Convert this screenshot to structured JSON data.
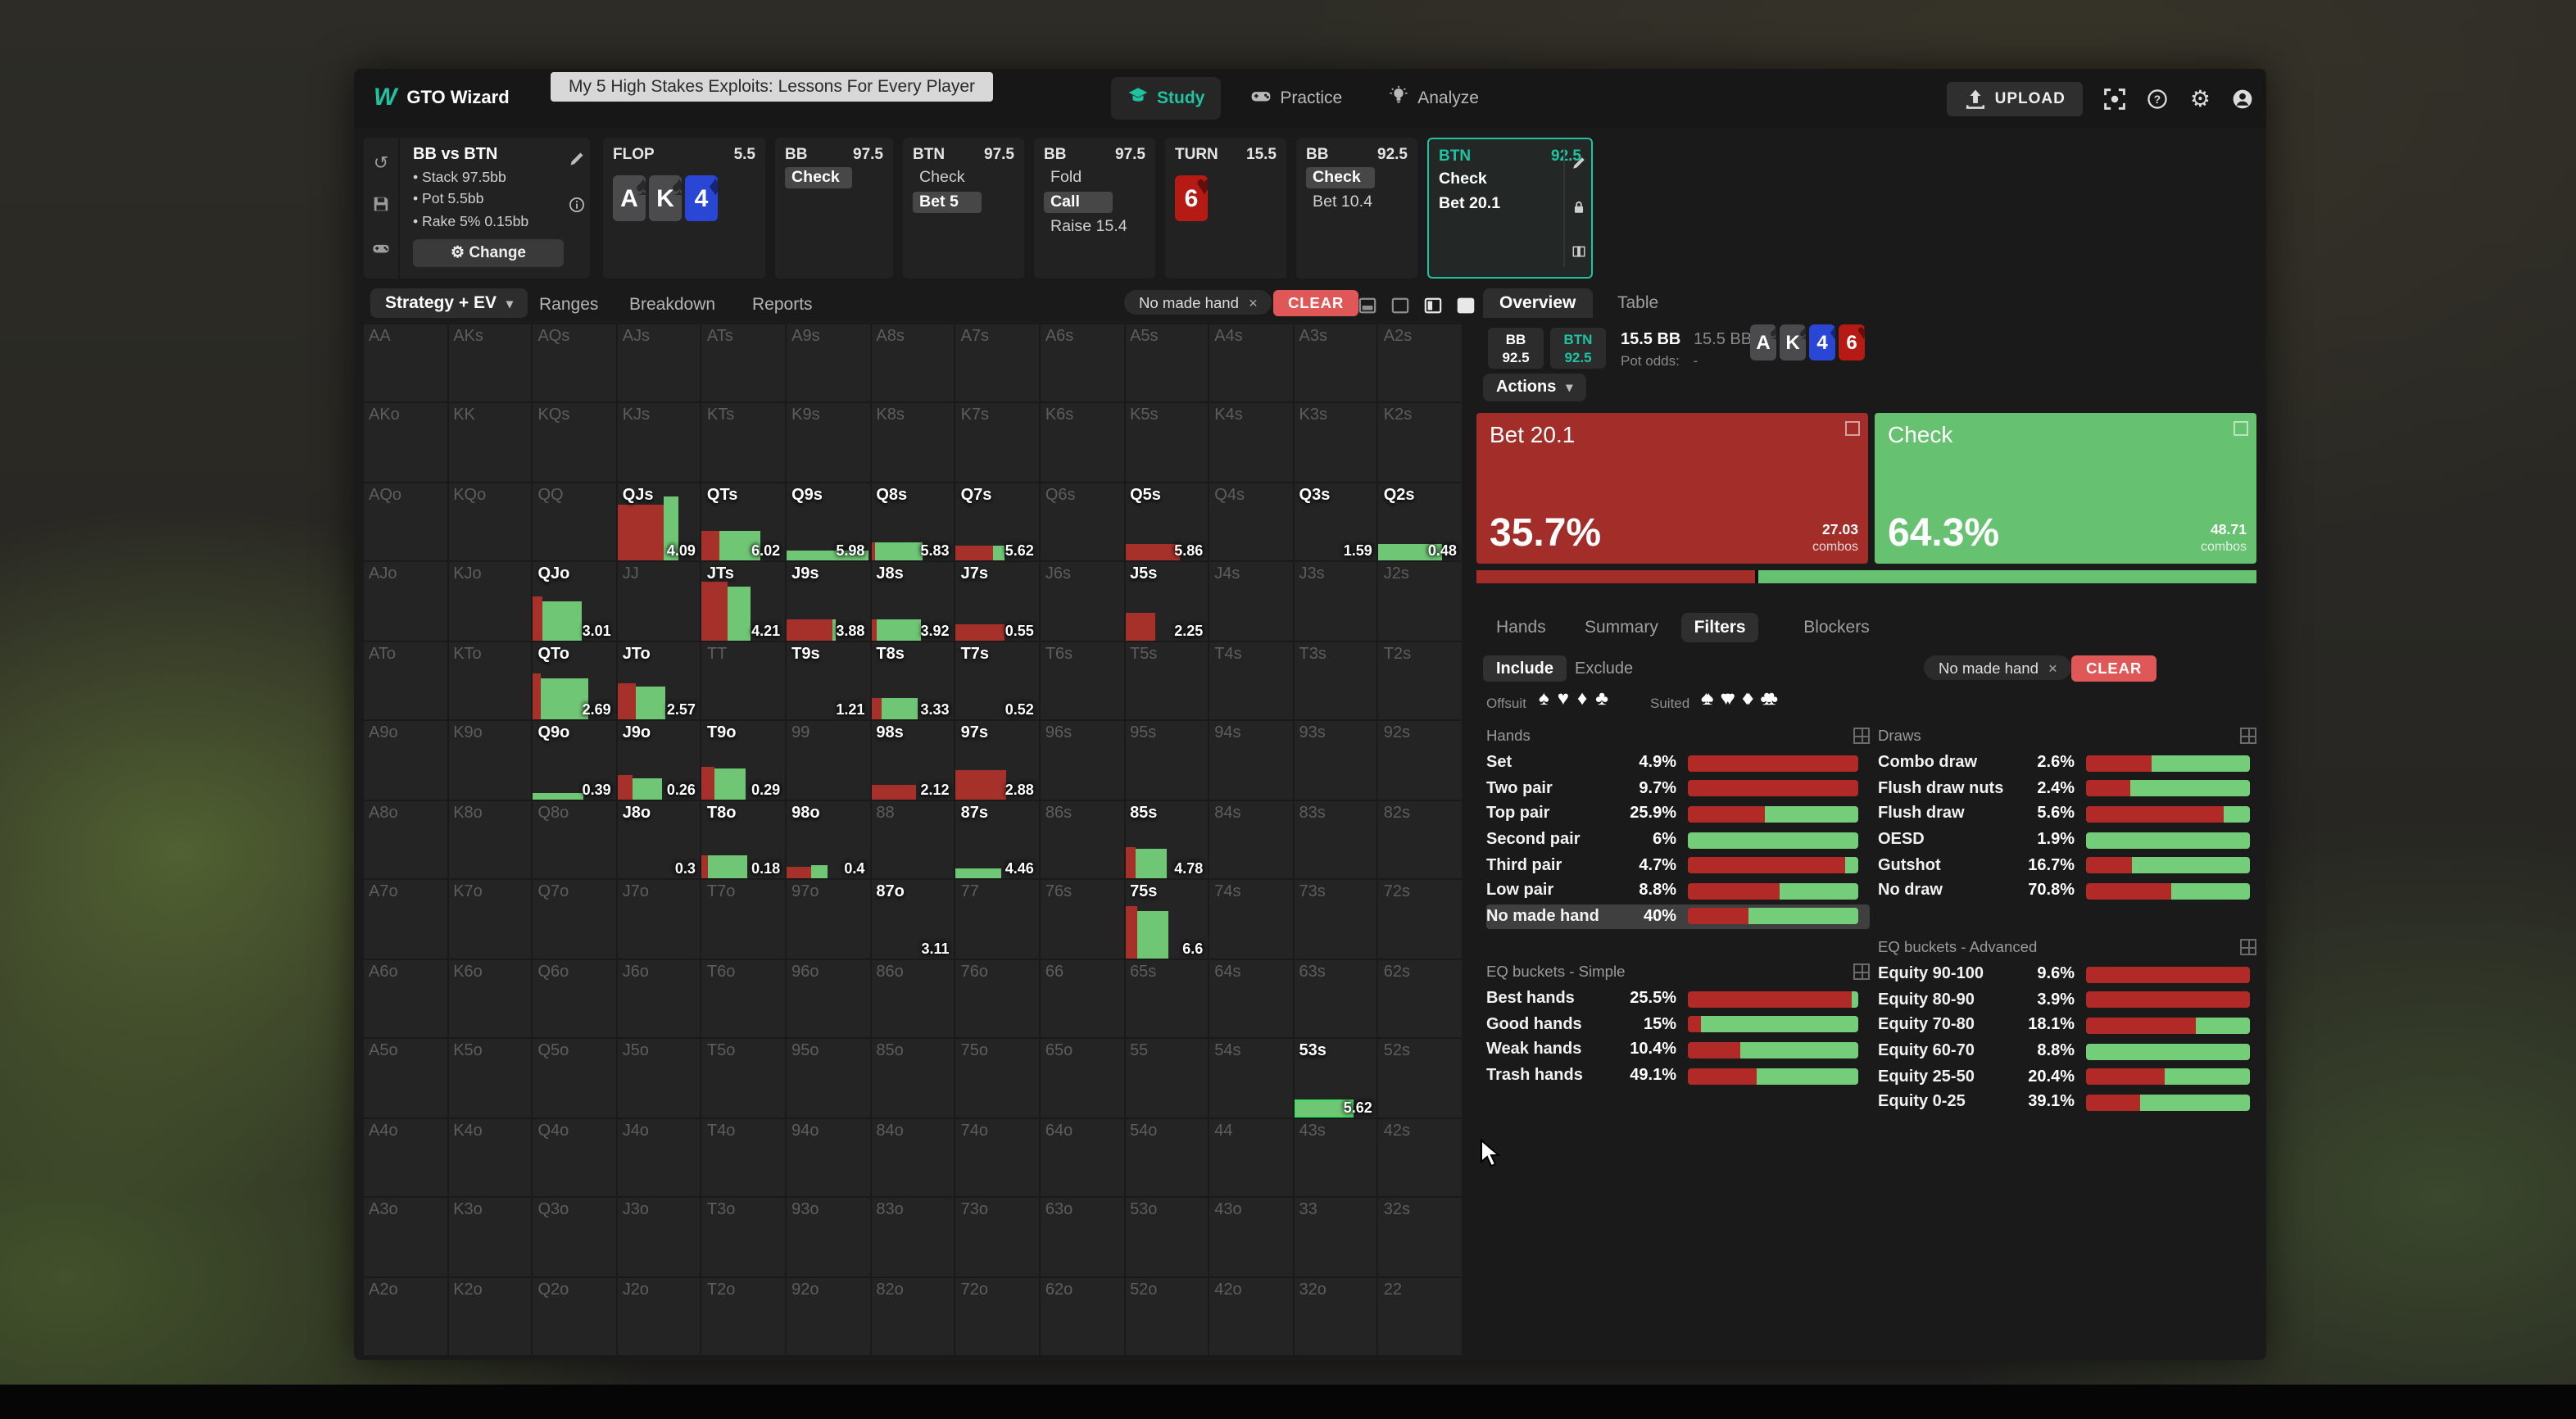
{
  "colors": {
    "accent": "#1fc3a0",
    "red": "#a6312b",
    "green": "#6fc675",
    "stat_red": "#b12a28",
    "stat_green": "#74ce79",
    "tile_red": "#a32d28",
    "tile_green": "#66c170",
    "clear": "#e05757",
    "card_blue": "#2a46d4",
    "card_red": "#b51a15",
    "card_gray": "#4b4b4d",
    "hl_green_border": "#3fe05f"
  },
  "top_bar": {
    "logo_mark": "W",
    "logo": "GTO Wizard",
    "video_title": "My 5 High Stakes Exploits: Lessons For Every Player",
    "nav": [
      {
        "label": "Study",
        "icon": "graduation-cap",
        "active": true
      },
      {
        "label": "Practice",
        "icon": "gamepad",
        "active": false
      },
      {
        "label": "Analyze",
        "icon": "lightbulb",
        "active": false
      }
    ],
    "upload": "UPLOAD",
    "right_icons": [
      "scan",
      "help",
      "settings",
      "account"
    ]
  },
  "config": {
    "title": "BB vs BTN",
    "stats": [
      "Stack 97.5bb",
      "Pot 5.5bb",
      "Rake 5% 0.15bb"
    ],
    "change": "Change",
    "rail_icons": [
      "history",
      "save",
      "gamepad",
      "text-cursor"
    ],
    "corner_icons": [
      "pencil",
      "info"
    ]
  },
  "history": [
    {
      "type": "board",
      "title": "FLOP",
      "amount": "5.5",
      "cards": [
        {
          "r": "A",
          "s": "spade"
        },
        {
          "r": "K",
          "s": "spade"
        },
        {
          "r": "4",
          "s": "diamond"
        }
      ]
    },
    {
      "type": "actions",
      "title": "BB",
      "amount": "97.5",
      "rows": [
        {
          "t": "Check",
          "hl": 1
        }
      ]
    },
    {
      "type": "actions",
      "title": "BTN",
      "amount": "97.5",
      "rows": [
        {
          "t": "Check"
        },
        {
          "t": "Bet 5",
          "hl": 1
        }
      ]
    },
    {
      "type": "actions",
      "title": "BB",
      "amount": "97.5",
      "rows": [
        {
          "t": "Fold"
        },
        {
          "t": "Call",
          "hl": 1
        },
        {
          "t": "Raise 15.4"
        }
      ]
    },
    {
      "type": "board",
      "title": "TURN",
      "amount": "15.5",
      "cards": [
        {
          "r": "6",
          "s": "heart"
        }
      ]
    },
    {
      "type": "actions",
      "title": "BB",
      "amount": "92.5",
      "rows": [
        {
          "t": "Check",
          "hl": 1
        },
        {
          "t": "Bet 10.4"
        }
      ]
    },
    {
      "type": "actions",
      "title": "BTN",
      "amount": "92.5",
      "selected": 1,
      "rows": [
        {
          "t": "Check"
        },
        {
          "t": "Bet 20.1"
        }
      ],
      "icons": [
        "pencil",
        "lock",
        "book"
      ]
    }
  ],
  "toolbar": {
    "view": "Strategy + EV",
    "tabs": [
      "Ranges",
      "Breakdown",
      "Reports"
    ],
    "chip": "No made hand",
    "clear": "CLEAR",
    "view_icons": [
      "display-solid",
      "display-split",
      "display-bars",
      "display-filled"
    ]
  },
  "matrix": {
    "rows": [
      [
        "AA",
        "AKs",
        "AQs",
        "AJs",
        "ATs",
        "A9s",
        "A8s",
        "A7s",
        "A6s",
        "A5s",
        "A4s",
        "A3s",
        "A2s"
      ],
      [
        "AKo",
        "KK",
        "KQs",
        "KJs",
        "KTs",
        "K9s",
        "K8s",
        "K7s",
        "K6s",
        "K5s",
        "K4s",
        "K3s",
        "K2s"
      ],
      [
        "AQo",
        "KQo",
        "QQ",
        {
          "l": "QJs",
          "v": "4.09",
          "b": [
            {
              "c": "r",
              "w": 56,
              "h": 72
            },
            {
              "c": "g",
              "w": 17,
              "h": 82
            }
          ]
        },
        {
          "l": "QTs",
          "v": "6.02",
          "b": [
            {
              "c": "r",
              "w": 20,
              "h": 38
            },
            {
              "c": "g",
              "w": 50,
              "h": 38
            }
          ]
        },
        {
          "l": "Q9s",
          "v": "5.98",
          "b": [
            {
              "c": "g",
              "w": 98,
              "h": 13
            }
          ]
        },
        {
          "l": "Q8s",
          "v": "5.83",
          "b": [
            {
              "c": "r",
              "w": 5,
              "h": 24
            },
            {
              "c": "g",
              "w": 57,
              "h": 24
            }
          ]
        },
        {
          "l": "Q7s",
          "v": "5.62",
          "b": [
            {
              "c": "r",
              "w": 44,
              "h": 19
            },
            {
              "c": "g",
              "w": 14,
              "h": 19
            }
          ]
        },
        "Q6s",
        {
          "l": "Q5s",
          "v": "5.86",
          "b": [
            {
              "c": "r",
              "w": 66,
              "h": 22
            }
          ]
        },
        "Q4s",
        {
          "l": "Q3s",
          "v": "1.59",
          "b": []
        },
        {
          "l": "Q2s",
          "v": "0.48",
          "b": [
            {
              "c": "g",
              "w": 76,
              "h": 22
            }
          ]
        }
      ],
      [
        "AJo",
        "KJo",
        {
          "l": "QJo",
          "v": "3.01",
          "b": [
            {
              "c": "r",
              "w": 12,
              "h": 56
            },
            {
              "c": "g",
              "w": 47,
              "h": 50
            }
          ]
        },
        "JJ",
        {
          "l": "JTs",
          "v": "4.21",
          "b": [
            {
              "c": "r",
              "w": 30,
              "h": 76
            },
            {
              "c": "g",
              "w": 28,
              "h": 70
            }
          ]
        },
        {
          "l": "J9s",
          "v": "3.88",
          "b": [
            {
              "c": "r",
              "w": 56,
              "h": 27
            },
            {
              "c": "g",
              "w": 4,
              "h": 27
            }
          ]
        },
        {
          "l": "J8s",
          "v": "3.92",
          "b": [
            {
              "c": "r",
              "w": 7,
              "h": 27
            },
            {
              "c": "g",
              "w": 53,
              "h": 27
            }
          ]
        },
        {
          "l": "J7s",
          "v": "0.55",
          "b": [
            {
              "c": "r",
              "w": 58,
              "h": 20
            }
          ]
        },
        "J6s",
        {
          "l": "J5s",
          "v": "2.25",
          "b": [
            {
              "c": "r",
              "w": 36,
              "h": 36
            }
          ]
        },
        "J4s",
        "J3s",
        "J2s"
      ],
      [
        "ATo",
        "KTo",
        {
          "l": "QTo",
          "v": "2.69",
          "b": [
            {
              "c": "r",
              "w": 10,
              "h": 60
            },
            {
              "c": "g",
              "w": 56,
              "h": 54
            }
          ]
        },
        {
          "l": "JTo",
          "v": "2.57",
          "b": [
            {
              "c": "r",
              "w": 23,
              "h": 46
            },
            {
              "c": "g",
              "w": 35,
              "h": 42
            }
          ]
        },
        "TT",
        {
          "l": "T9s",
          "v": "1.21",
          "b": []
        },
        {
          "l": "T8s",
          "v": "3.33",
          "b": [
            {
              "c": "r",
              "w": 13,
              "h": 29
            },
            {
              "c": "g",
              "w": 43,
              "h": 29
            }
          ]
        },
        {
          "l": "T7s",
          "v": "0.52",
          "b": []
        },
        "T6s",
        "T5s",
        "T4s",
        "T3s",
        "T2s"
      ],
      [
        "A9o",
        "K9o",
        {
          "l": "Q9o",
          "v": "0.39",
          "b": [
            {
              "c": "g",
              "w": 60,
              "h": 7
            }
          ]
        },
        {
          "l": "J9o",
          "v": "0.26",
          "b": [
            {
              "c": "r",
              "w": 19,
              "h": 31
            },
            {
              "c": "g",
              "w": 35,
              "h": 26
            }
          ]
        },
        {
          "l": "T9o",
          "v": "0.29",
          "b": [
            {
              "c": "r",
              "w": 15,
              "h": 42
            },
            {
              "c": "g",
              "w": 37,
              "h": 39
            }
          ]
        },
        "99",
        {
          "l": "98s",
          "v": "2.12",
          "b": [
            {
              "c": "r",
              "w": 54,
              "h": 19
            }
          ]
        },
        {
          "l": "97s",
          "v": "2.88",
          "b": [
            {
              "c": "r",
              "w": 60,
              "h": 37
            }
          ]
        },
        "96s",
        "95s",
        "94s",
        "93s",
        "92s"
      ],
      [
        "A8o",
        "K8o",
        "Q8o",
        {
          "l": "J8o",
          "v": "0.3",
          "b": []
        },
        {
          "l": "T8o",
          "v": "0.18",
          "b": [
            {
              "c": "r",
              "w": 7,
              "h": 29
            },
            {
              "c": "g",
              "w": 48,
              "h": 29
            }
          ]
        },
        {
          "l": "98o",
          "v": "0.4",
          "b": [
            {
              "c": "r",
              "w": 29,
              "h": 15
            },
            {
              "c": "g",
              "w": 21,
              "h": 17
            }
          ]
        },
        "88",
        {
          "l": "87s",
          "v": "4.46",
          "b": [
            {
              "c": "g",
              "w": 54,
              "h": 14
            }
          ]
        },
        "86s",
        {
          "l": "85s",
          "v": "4.78",
          "b": [
            {
              "c": "r",
              "w": 12,
              "h": 41
            },
            {
              "c": "g",
              "w": 38,
              "h": 38
            }
          ]
        },
        "84s",
        "83s",
        "82s"
      ],
      [
        "A7o",
        "K7o",
        "Q7o",
        "J7o",
        "T7o",
        "97o",
        {
          "l": "87o",
          "v": "3.11",
          "b": []
        },
        "77",
        "76s",
        {
          "l": "75s",
          "v": "6.6",
          "b": [
            {
              "c": "r",
              "w": 15,
              "h": 66
            },
            {
              "c": "g",
              "w": 37,
              "h": 60
            }
          ]
        },
        "74s",
        "73s",
        "72s"
      ],
      [
        "A6o",
        "K6o",
        "Q6o",
        "J6o",
        "T6o",
        "96o",
        "86o",
        "76o",
        "66",
        "65s",
        "64s",
        "63s",
        "62s"
      ],
      [
        "A5o",
        "K5o",
        "Q5o",
        "J5o",
        "T5o",
        "95o",
        "85o",
        "75o",
        "65o",
        "55",
        "54s",
        {
          "l": "53s",
          "v": "5.62",
          "hl": 1,
          "b": [
            {
              "c": "g",
              "w": 72,
              "h": 22
            }
          ]
        },
        "52s"
      ],
      [
        "A4o",
        "K4o",
        "Q4o",
        "J4o",
        "T4o",
        "94o",
        "84o",
        "74o",
        "64o",
        "54o",
        "44",
        "43s",
        "42s"
      ],
      [
        "A3o",
        "K3o",
        "Q3o",
        "J3o",
        "T3o",
        "93o",
        "83o",
        "73o",
        "63o",
        "53o",
        "43o",
        "33",
        "32s"
      ],
      [
        "A2o",
        "K2o",
        "Q2o",
        "J2o",
        "T2o",
        "92o",
        "82o",
        "72o",
        "62o",
        "52o",
        "42o",
        "32o",
        "22"
      ]
    ]
  },
  "right": {
    "tabs": [
      {
        "label": "Overview",
        "active": true
      },
      {
        "label": "Table",
        "active": false
      }
    ],
    "info": {
      "p1": "BB",
      "p1s": "92.5",
      "p2": "BTN",
      "p2s": "92.5",
      "pot": "15.5 BB",
      "pot2": "15.5 BB",
      "odds_label": "Pot odds:",
      "odds": "-",
      "cards": [
        {
          "r": "A",
          "s": "spade"
        },
        {
          "r": "K",
          "s": "spade"
        },
        {
          "r": "4",
          "s": "diamond"
        },
        {
          "r": "6",
          "s": "heart"
        }
      ]
    },
    "actions": "Actions",
    "tiles": [
      {
        "label": "Bet 20.1",
        "pct": "35.7%",
        "combos": "27.03",
        "unit": "combos",
        "color": "red"
      },
      {
        "label": "Check",
        "pct": "64.3%",
        "combos": "48.71",
        "unit": "combos",
        "color": "green"
      }
    ],
    "split": {
      "red": 35.7,
      "green": 64.3
    },
    "subtabs": [
      {
        "label": "Hands",
        "active": false
      },
      {
        "label": "Summary",
        "active": false
      },
      {
        "label": "Filters",
        "active": true
      },
      {
        "label": "Blockers",
        "active": false
      }
    ],
    "include": "Include",
    "exclude": "Exclude",
    "chip": "No made hand",
    "clear": "CLEAR",
    "offsuit": "Offsuit",
    "suited": "Suited",
    "suit_glyphs": [
      "spade",
      "heart",
      "diamond",
      "club"
    ],
    "sections": {
      "hands": {
        "title": "Hands",
        "rows": [
          {
            "label": "Set",
            "pct": "4.9%",
            "red": 100
          },
          {
            "label": "Two pair",
            "pct": "9.7%",
            "red": 100
          },
          {
            "label": "Top pair",
            "pct": "25.9%",
            "red": 45
          },
          {
            "label": "Second pair",
            "pct": "6%",
            "red": 0
          },
          {
            "label": "Third pair",
            "pct": "4.7%",
            "red": 92
          },
          {
            "label": "Low pair",
            "pct": "8.8%",
            "red": 54
          },
          {
            "label": "No made hand",
            "pct": "40%",
            "red": 36,
            "hl": 1
          }
        ]
      },
      "draws": {
        "title": "Draws",
        "rows": [
          {
            "label": "Combo draw",
            "pct": "2.6%",
            "red": 40
          },
          {
            "label": "Flush draw nuts",
            "pct": "2.4%",
            "red": 27
          },
          {
            "label": "Flush draw",
            "pct": "5.6%",
            "red": 84
          },
          {
            "label": "OESD",
            "pct": "1.9%",
            "red": 0
          },
          {
            "label": "Gutshot",
            "pct": "16.7%",
            "red": 28
          },
          {
            "label": "No draw",
            "pct": "70.8%",
            "red": 52
          }
        ]
      },
      "eq_simple": {
        "title": "EQ buckets - Simple",
        "rows": [
          {
            "label": "Best hands",
            "pct": "25.5%",
            "red": 96
          },
          {
            "label": "Good hands",
            "pct": "15%",
            "red": 8
          },
          {
            "label": "Weak hands",
            "pct": "10.4%",
            "red": 31
          },
          {
            "label": "Trash hands",
            "pct": "49.1%",
            "red": 40
          }
        ]
      },
      "eq_advanced": {
        "title": "EQ buckets - Advanced",
        "rows": [
          {
            "label": "Equity 90-100",
            "pct": "9.6%",
            "red": 100
          },
          {
            "label": "Equity 80-90",
            "pct": "3.9%",
            "red": 100
          },
          {
            "label": "Equity 70-80",
            "pct": "18.1%",
            "red": 67
          },
          {
            "label": "Equity 60-70",
            "pct": "8.8%",
            "red": 0
          },
          {
            "label": "Equity 25-50",
            "pct": "20.4%",
            "red": 48
          },
          {
            "label": "Equity 0-25",
            "pct": "39.1%",
            "red": 33
          }
        ]
      }
    }
  }
}
